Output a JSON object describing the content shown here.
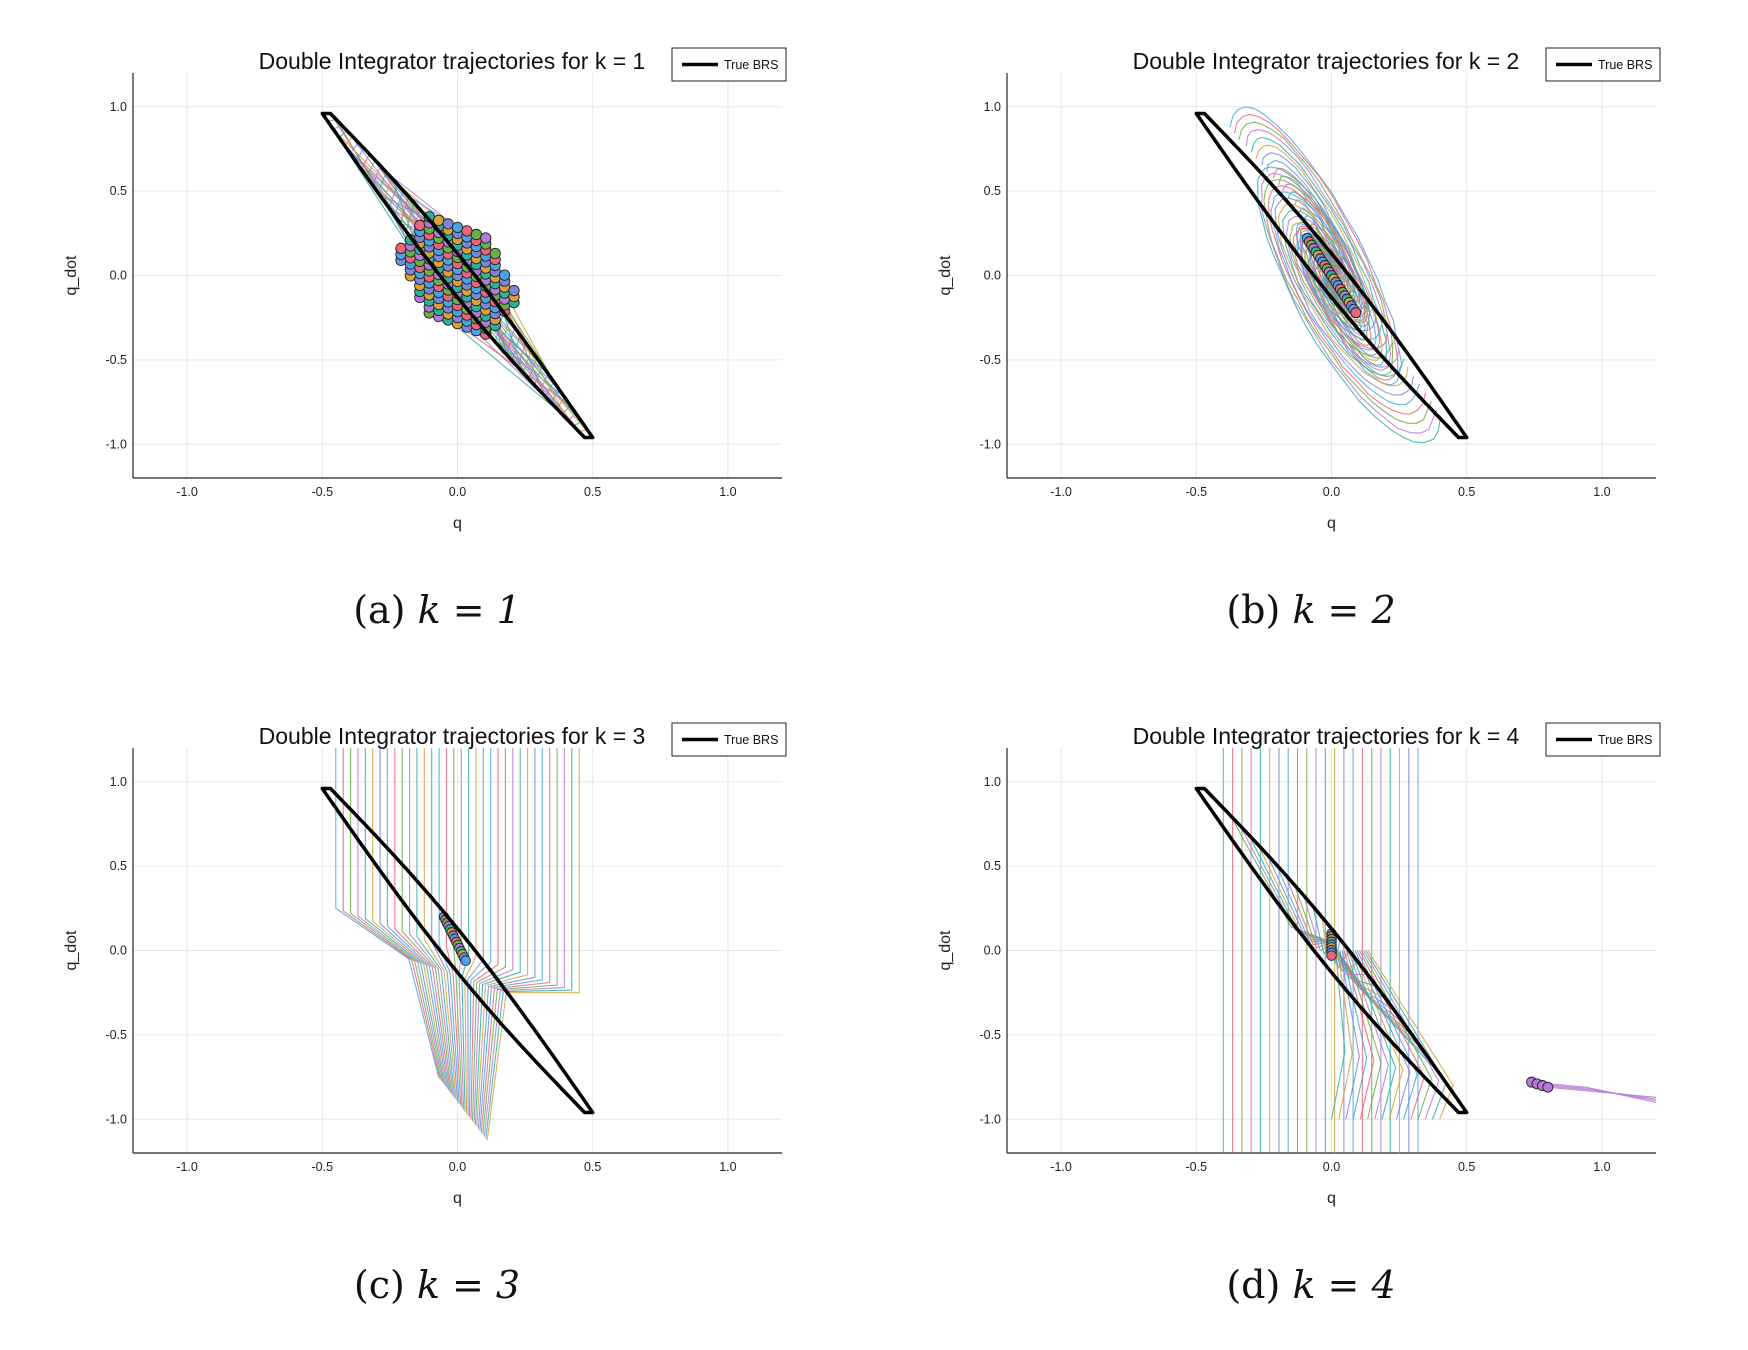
{
  "chart_data": [
    {
      "type": "line",
      "panel": "a",
      "title": "Double Integrator trajectories for k = 1",
      "xlabel": "q",
      "ylabel": "q_dot",
      "xlim": [
        -1.2,
        1.2
      ],
      "ylim": [
        -1.2,
        1.2
      ],
      "xticks": [
        -1.0,
        -0.5,
        0.0,
        0.5,
        1.0
      ],
      "yticks": [
        -1.0,
        -0.5,
        0.0,
        0.5,
        1.0
      ],
      "xtick_labels": [
        "-1.0",
        "-0.5",
        "0.0",
        "0.5",
        "1.0"
      ],
      "ytick_labels": [
        "-1.0",
        "-0.5",
        "0.0",
        "0.5",
        "1.0"
      ],
      "grid": true,
      "legend": {
        "position": "top-right",
        "entries": [
          "True BRS"
        ]
      },
      "caption": {
        "prefix": "(a)",
        "math": "k = 1"
      },
      "brs": {
        "name": "True BRS",
        "color": "#000000",
        "vertices": [
          [
            -0.5,
            0.96
          ],
          [
            -0.47,
            0.96
          ],
          [
            0.5,
            -0.96
          ],
          [
            0.47,
            -0.96
          ]
        ],
        "bulge": 0.1
      },
      "trajectory_style": "converge",
      "endpoint_region": {
        "shape": "hexagon",
        "center": [
          0.0,
          0.0
        ],
        "radius_q": 0.22,
        "radius_qdot": 0.3
      }
    },
    {
      "type": "line",
      "panel": "b",
      "title": "Double Integrator trajectories for k = 2",
      "xlabel": "q",
      "ylabel": "q_dot",
      "xlim": [
        -1.2,
        1.2
      ],
      "ylim": [
        -1.2,
        1.2
      ],
      "xticks": [
        -1.0,
        -0.5,
        0.0,
        0.5,
        1.0
      ],
      "yticks": [
        -1.0,
        -0.5,
        0.0,
        0.5,
        1.0
      ],
      "xtick_labels": [
        "-1.0",
        "-0.5",
        "0.0",
        "0.5",
        "1.0"
      ],
      "ytick_labels": [
        "-1.0",
        "-0.5",
        "0.0",
        "0.5",
        "1.0"
      ],
      "grid": true,
      "legend": {
        "position": "top-right",
        "entries": [
          "True BRS"
        ]
      },
      "caption": {
        "prefix": "(b)",
        "math": "k = 2"
      },
      "brs": {
        "name": "True BRS",
        "color": "#000000",
        "vertices": [
          [
            -0.5,
            0.96
          ],
          [
            -0.47,
            0.96
          ],
          [
            0.5,
            -0.96
          ],
          [
            0.47,
            -0.96
          ]
        ],
        "bulge": 0.1
      },
      "trajectory_style": "loops",
      "endpoint_segment": [
        [
          -0.09,
          0.22
        ],
        [
          0.09,
          -0.22
        ]
      ]
    },
    {
      "type": "line",
      "panel": "c",
      "title": "Double Integrator trajectories for k = 3",
      "xlabel": "q",
      "ylabel": "q_dot",
      "xlim": [
        -1.2,
        1.2
      ],
      "ylim": [
        -1.2,
        1.2
      ],
      "xticks": [
        -1.0,
        -0.5,
        0.0,
        0.5,
        1.0
      ],
      "yticks": [
        -1.0,
        -0.5,
        0.0,
        0.5,
        1.0
      ],
      "xtick_labels": [
        "-1.0",
        "-0.5",
        "0.0",
        "0.5",
        "1.0"
      ],
      "ytick_labels": [
        "-1.0",
        "-0.5",
        "0.0",
        "0.5",
        "1.0"
      ],
      "grid": true,
      "legend": {
        "position": "top-right",
        "entries": [
          "True BRS"
        ]
      },
      "caption": {
        "prefix": "(c)",
        "math": "k = 3"
      },
      "brs": {
        "name": "True BRS",
        "color": "#000000",
        "vertices": [
          [
            -0.5,
            0.96
          ],
          [
            -0.47,
            0.96
          ],
          [
            0.5,
            -0.96
          ],
          [
            0.47,
            -0.96
          ]
        ],
        "bulge": 0.1
      },
      "trajectory_style": "vertical",
      "endpoint_segment": [
        [
          -0.05,
          0.2
        ],
        [
          0.03,
          -0.06
        ]
      ]
    },
    {
      "type": "line",
      "panel": "d",
      "title": "Double Integrator trajectories for k = 4",
      "xlabel": "q",
      "ylabel": "q_dot",
      "xlim": [
        -1.2,
        1.2
      ],
      "ylim": [
        -1.2,
        1.2
      ],
      "xticks": [
        -1.0,
        -0.5,
        0.0,
        0.5,
        1.0
      ],
      "yticks": [
        -1.0,
        -0.5,
        0.0,
        0.5,
        1.0
      ],
      "xtick_labels": [
        "-1.0",
        "-0.5",
        "0.0",
        "0.5",
        "1.0"
      ],
      "ytick_labels": [
        "-1.0",
        "-0.5",
        "0.0",
        "0.5",
        "1.0"
      ],
      "grid": true,
      "legend": {
        "position": "top-right",
        "entries": [
          "True BRS"
        ]
      },
      "caption": {
        "prefix": "(d)",
        "math": "k = 4"
      },
      "brs": {
        "name": "True BRS",
        "color": "#000000",
        "vertices": [
          [
            -0.5,
            0.96
          ],
          [
            -0.47,
            0.96
          ],
          [
            0.5,
            -0.96
          ],
          [
            0.47,
            -0.96
          ]
        ],
        "bulge": 0.1
      },
      "trajectory_style": "diverge",
      "endpoint_segment": [
        [
          0.0,
          0.1
        ],
        [
          0.0,
          -0.03
        ]
      ],
      "escaped_cluster": {
        "q": [
          0.74,
          0.76,
          0.78,
          0.8
        ],
        "q_dot": [
          -0.78,
          -0.79,
          -0.8,
          -0.81
        ],
        "tail_to": [
          1.2,
          -0.9
        ]
      }
    }
  ],
  "palette": [
    "#4aa3e0",
    "#e8657a",
    "#6cae4a",
    "#b57ad6",
    "#2fb0a3",
    "#d6a23a",
    "#7b86d8"
  ],
  "legend_color": "#000000"
}
